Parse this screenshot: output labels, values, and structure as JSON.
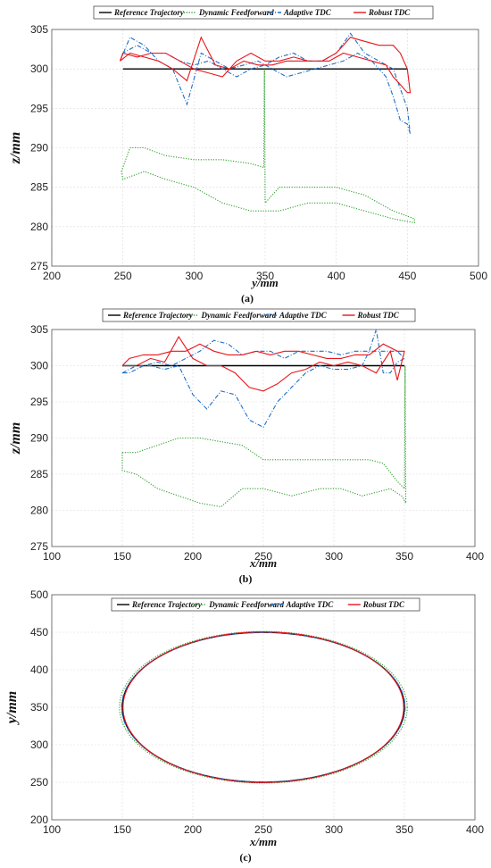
{
  "legend_labels": [
    "Reference Trajectory",
    "Dynamic Feedforward",
    "Adaptive TDC",
    "Robust TDC"
  ],
  "colors": {
    "reference": "#000000",
    "dynamic": "#2ca02c",
    "adaptive": "#1f6fc5",
    "robust": "#e8151b"
  },
  "chart_data": [
    {
      "type": "line",
      "caption": "(a)",
      "xlabel": "y/mm",
      "ylabel": "z/mm",
      "xlim": [
        200,
        500
      ],
      "ylim": [
        275,
        305
      ],
      "xticks": [
        200,
        250,
        300,
        350,
        400,
        450,
        500
      ],
      "yticks": [
        275,
        280,
        285,
        290,
        295,
        300,
        305
      ],
      "grid": true,
      "legend_position": "top",
      "series": [
        {
          "name": "Reference Trajectory",
          "style": "solid",
          "x": [
            250,
            450
          ],
          "y": [
            300,
            300
          ]
        },
        {
          "name": "Dynamic Feedforward",
          "style": "dotted",
          "x": [
            249,
            255,
            265,
            280,
            300,
            320,
            340,
            349,
            349.5,
            350,
            360,
            380,
            400,
            420,
            440,
            455,
            455,
            440,
            420,
            400,
            380,
            360,
            340,
            320,
            300,
            280,
            265,
            250,
            249
          ],
          "y": [
            287,
            290,
            290,
            289,
            288.5,
            288.5,
            288,
            287.5,
            300,
            283,
            285,
            285,
            285,
            284,
            282,
            281,
            280.5,
            281,
            282,
            283,
            283,
            282,
            282,
            283,
            285,
            286,
            287,
            286,
            287
          ]
        },
        {
          "name": "Adaptive TDC",
          "style": "dashdot",
          "x": [
            248,
            255,
            265,
            275,
            285,
            295,
            305,
            315,
            325,
            335,
            345,
            355,
            365,
            375,
            385,
            395,
            405,
            415,
            425,
            435,
            440,
            445,
            450,
            452,
            450,
            440,
            430,
            420,
            410,
            400,
            390,
            380,
            370,
            360,
            350,
            340,
            330,
            320,
            310,
            300,
            290,
            280,
            270,
            260,
            250,
            248
          ],
          "y": [
            301,
            304,
            303,
            301,
            300,
            295.5,
            302,
            301,
            300,
            300.5,
            301,
            300,
            299,
            299.5,
            300,
            300.5,
            301,
            302,
            301,
            299,
            296.5,
            293.5,
            293,
            291.8,
            295,
            300,
            301,
            302,
            304.5,
            302,
            301,
            301,
            302,
            301.5,
            300.5,
            300,
            299,
            300,
            301,
            300.5,
            301,
            302,
            302,
            303,
            302,
            301
          ]
        },
        {
          "name": "Robust TDC",
          "style": "solid",
          "x": [
            248,
            255,
            265,
            275,
            285,
            295,
            305,
            315,
            325,
            335,
            345,
            355,
            365,
            375,
            385,
            395,
            405,
            415,
            425,
            435,
            440,
            445,
            450,
            452,
            450,
            445,
            440,
            430,
            420,
            410,
            400,
            390,
            380,
            370,
            360,
            350,
            340,
            330,
            320,
            310,
            300,
            290,
            280,
            270,
            260,
            250,
            248
          ],
          "y": [
            301,
            302,
            301.5,
            301,
            300,
            298.5,
            304,
            300.5,
            300,
            301,
            300.5,
            300.5,
            301,
            301,
            301,
            301,
            302,
            301.5,
            301,
            300.5,
            299,
            298,
            297,
            297,
            300,
            302,
            303,
            303,
            303.5,
            304,
            302,
            301,
            301,
            301.5,
            301,
            301,
            302,
            301,
            299,
            299.5,
            300,
            301,
            302,
            302,
            301.5,
            302,
            301
          ]
        }
      ]
    },
    {
      "type": "line",
      "caption": "(b)",
      "xlabel": "x/mm",
      "ylabel": "z/mm",
      "xlim": [
        100,
        400
      ],
      "ylim": [
        275,
        305
      ],
      "xticks": [
        100,
        150,
        200,
        250,
        300,
        350,
        400
      ],
      "yticks": [
        275,
        280,
        285,
        290,
        295,
        300,
        305
      ],
      "grid": true,
      "legend_position": "top",
      "series": [
        {
          "name": "Reference Trajectory",
          "style": "solid",
          "x": [
            150,
            350
          ],
          "y": [
            300,
            300
          ]
        },
        {
          "name": "Dynamic Feedforward",
          "style": "dotted",
          "x": [
            150,
            160,
            175,
            190,
            205,
            220,
            235,
            250,
            265,
            280,
            295,
            310,
            325,
            335,
            345,
            350,
            350.5,
            351,
            348,
            340,
            330,
            320,
            305,
            290,
            270,
            250,
            235,
            220,
            205,
            190,
            175,
            160,
            150,
            150
          ],
          "y": [
            288,
            288,
            289,
            290,
            290,
            289.5,
            289,
            287,
            287,
            287,
            287,
            287,
            287,
            286.5,
            284,
            283,
            300,
            281,
            282,
            283,
            282.5,
            282,
            283,
            283,
            282,
            283,
            283,
            280.5,
            281,
            282,
            283,
            285,
            285.5,
            288
          ]
        },
        {
          "name": "Adaptive TDC",
          "style": "dashdot",
          "x": [
            150,
            160,
            170,
            180,
            190,
            200,
            210,
            220,
            230,
            240,
            250,
            260,
            270,
            280,
            290,
            300,
            310,
            320,
            325,
            330,
            335,
            340,
            345,
            350,
            345,
            335,
            325,
            315,
            305,
            295,
            285,
            275,
            265,
            255,
            245,
            235,
            225,
            215,
            205,
            195,
            185,
            175,
            165,
            155,
            150
          ],
          "y": [
            299,
            300,
            300,
            299.5,
            300,
            296,
            294,
            296.5,
            296,
            292.5,
            291.5,
            295,
            297,
            299,
            300,
            299.5,
            299.5,
            300,
            302,
            305,
            299,
            299,
            300.5,
            301,
            302,
            302,
            302,
            302,
            301.5,
            302,
            302,
            302,
            301,
            302,
            302,
            301.5,
            303,
            303.5,
            302,
            301,
            300,
            300.5,
            300,
            299,
            299
          ]
        },
        {
          "name": "Robust TDC",
          "style": "solid",
          "x": [
            150,
            160,
            170,
            180,
            190,
            200,
            210,
            220,
            230,
            240,
            250,
            260,
            270,
            280,
            290,
            300,
            310,
            320,
            330,
            340,
            345,
            350,
            345,
            335,
            325,
            315,
            305,
            295,
            285,
            275,
            265,
            255,
            245,
            235,
            225,
            215,
            205,
            195,
            185,
            175,
            165,
            155,
            150
          ],
          "y": [
            300,
            300,
            301,
            300.5,
            304,
            301,
            300,
            300,
            299,
            297,
            296.5,
            297.5,
            299,
            299.5,
            300.5,
            300,
            300.5,
            300,
            299,
            302,
            298,
            302,
            302,
            303,
            301.5,
            301.5,
            301,
            301,
            301.5,
            302,
            302,
            301.5,
            302,
            301.5,
            301.5,
            302,
            303,
            302,
            302,
            301.5,
            301.5,
            301,
            300
          ]
        }
      ]
    },
    {
      "type": "line",
      "caption": "(c)",
      "xlabel": "x/mm",
      "ylabel": "y/mm",
      "xlim": [
        100,
        400
      ],
      "ylim": [
        200,
        500
      ],
      "xticks": [
        100,
        150,
        200,
        250,
        300,
        350,
        400
      ],
      "yticks": [
        200,
        250,
        300,
        350,
        400,
        450,
        500
      ],
      "grid": true,
      "legend_position": "top",
      "ellipse": {
        "center_x": 250,
        "center_y": 350,
        "radius_x": 100,
        "radius_y": 100
      },
      "series": [
        {
          "name": "Reference Trajectory",
          "style": "solid",
          "shape": "ellipse",
          "radius_x": 100,
          "radius_y": 100
        },
        {
          "name": "Dynamic Feedforward",
          "style": "dotted",
          "shape": "ellipse",
          "radius_x": 102,
          "radius_y": 101
        },
        {
          "name": "Adaptive TDC",
          "style": "dashdot",
          "shape": "ellipse",
          "radius_x": 100.5,
          "radius_y": 99.5
        },
        {
          "name": "Robust TDC",
          "style": "solid",
          "shape": "ellipse",
          "radius_x": 99.5,
          "radius_y": 100.5
        }
      ]
    }
  ]
}
